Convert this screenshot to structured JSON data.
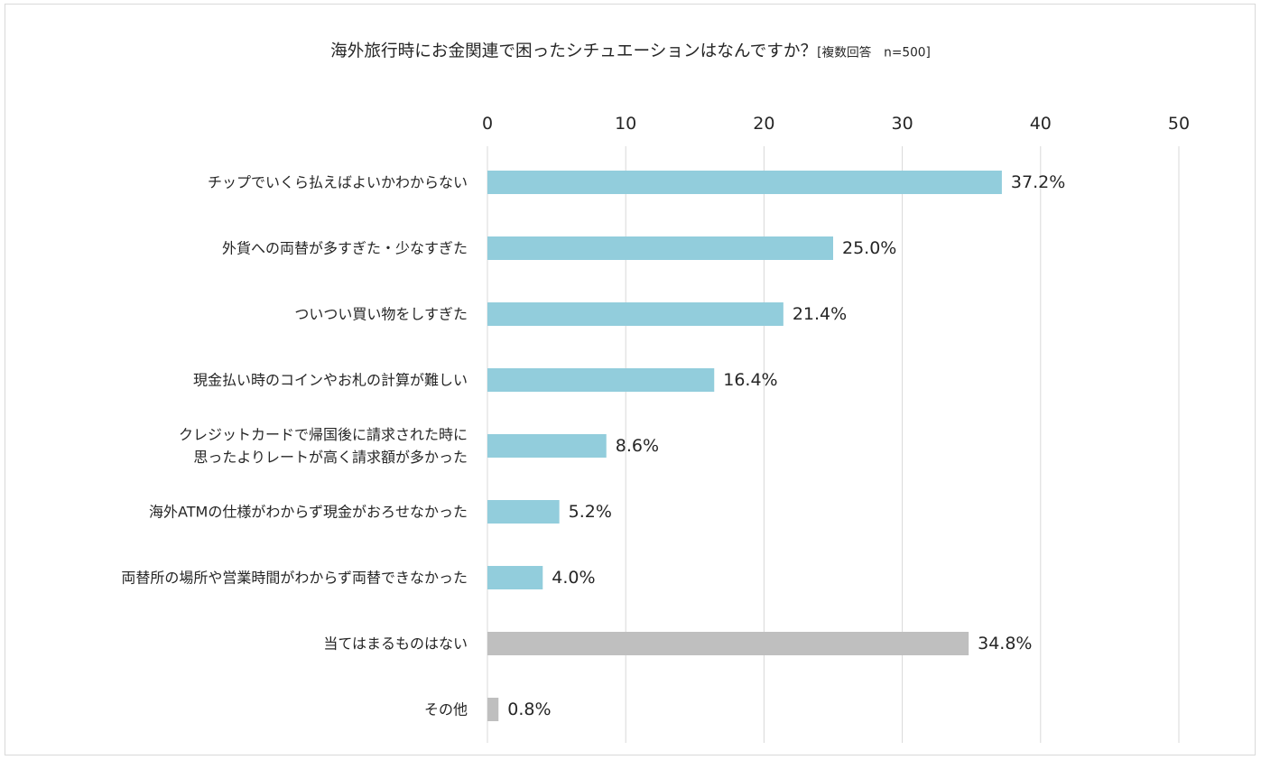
{
  "chart_data": {
    "type": "bar",
    "orientation": "horizontal",
    "title": "海外旅行時にお金関連で困ったシチュエーションはなんですか？",
    "subtitle": "[複数回答　n=500]",
    "xlabel": "",
    "ylabel": "",
    "xlim": [
      0,
      50
    ],
    "ticks": [
      "0",
      "10",
      "20",
      "30",
      "40",
      "50"
    ],
    "tick_values": [
      0,
      10,
      20,
      30,
      40,
      50
    ],
    "grid": true,
    "legend": "none",
    "categories": [
      [
        "チップでいくら払えばよいかわからない"
      ],
      [
        "外貨への両替が多すぎた・少なすぎた"
      ],
      [
        "ついつい買い物をしすぎた"
      ],
      [
        "現金払い時のコインやお札の計算が難しい"
      ],
      [
        "クレジットカードで帰国後に請求された時に",
        "思ったよりレートが高く請求額が多かった"
      ],
      [
        "海外ATMの仕様がわからず現金がおろせなかった"
      ],
      [
        "両替所の場所や営業時間がわからず両替できなかった"
      ],
      [
        "当てはまるものはない"
      ],
      [
        "その他"
      ]
    ],
    "values": [
      37.2,
      25.0,
      21.4,
      16.4,
      8.6,
      5.2,
      4.0,
      34.8,
      0.8
    ],
    "value_labels": [
      "37.2%",
      "25.0%",
      "21.4%",
      "16.4%",
      "8.6%",
      "5.2%",
      "4.0%",
      "34.8%",
      "0.8%"
    ],
    "bar_colors": [
      "#92cddc",
      "#92cddc",
      "#92cddc",
      "#92cddc",
      "#92cddc",
      "#92cddc",
      "#92cddc",
      "#bfbfbf",
      "#bfbfbf"
    ],
    "grid_color": "#d9d9d9"
  }
}
